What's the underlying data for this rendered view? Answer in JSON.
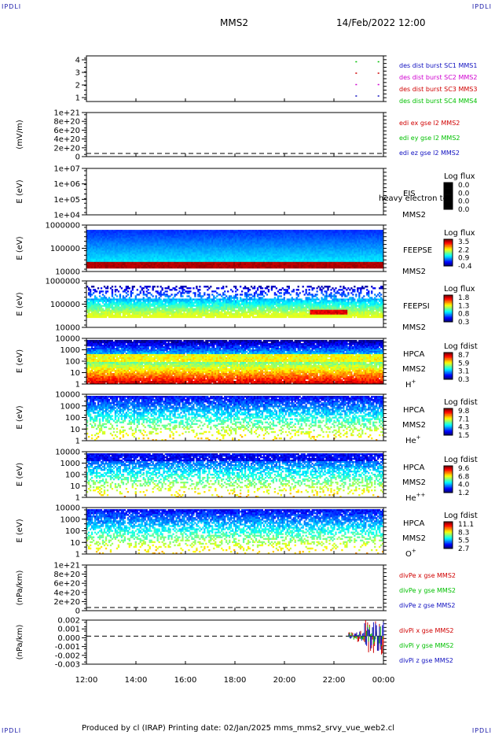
{
  "header": {
    "corner_label": "IPDLI",
    "mission": "MMS2",
    "datetime": "14/Feb/2022 12:00"
  },
  "footer": {
    "text": "Produced by cl (IRAP)   Printing date: 02/Jan/2025   mms_mms2_srvy_vue_web2.cl"
  },
  "x_axis": {
    "ticks": [
      "12:00",
      "14:00",
      "16:00",
      "18:00",
      "20:00",
      "22:00",
      "00:00"
    ]
  },
  "colors": {
    "blue": "#1010c0",
    "magenta": "#d000d0",
    "red": "#d00000",
    "green": "#00c000"
  },
  "chart_data": [
    {
      "type": "scatter",
      "ylabel": "",
      "yticks": [
        "4",
        "3",
        "2",
        "1"
      ],
      "ylim": [
        0.5,
        4.5
      ],
      "series": [
        {
          "name": "des dist burst SC1 MMS1",
          "color": "#1010c0",
          "x": [
            22.9,
            23.8
          ],
          "y": [
            1,
            1
          ]
        },
        {
          "name": "des dist burst SC2 MMS2",
          "color": "#d000d0",
          "x": [
            22.9,
            23.8
          ],
          "y": [
            2,
            2
          ]
        },
        {
          "name": "des dist burst SC3 MMS3",
          "color": "#d00000",
          "x": [
            22.9,
            23.8
          ],
          "y": [
            3,
            3
          ]
        },
        {
          "name": "des dist burst SC4 MMS4",
          "color": "#00c000",
          "x": [
            22.9,
            23.8
          ],
          "y": [
            4,
            4
          ]
        }
      ]
    },
    {
      "type": "line",
      "ylabel": "(mV/m)",
      "yticks": [
        "1e+21",
        "8e+20",
        "6e+20",
        "4e+20",
        "2e+20",
        "0"
      ],
      "series": [
        {
          "name": "edi ex gse l2 MMS2",
          "color": "#d00000"
        },
        {
          "name": "edi ey gse l2 MMS2",
          "color": "#00c000"
        },
        {
          "name": "edi ez gse l2 MMS2",
          "color": "#1010c0"
        }
      ]
    },
    {
      "type": "heatmap",
      "ylabel": "E (eV)",
      "yticks": [
        "1e+07",
        "1e+06",
        "1e+05",
        "1e+04"
      ],
      "instrument": "EIS",
      "mission": "MMS2",
      "overlay": "heavy electron to",
      "colorbar_title": "Log flux",
      "colorbar_ticks": [
        "0.0",
        "0.0",
        "0.0",
        "0.0"
      ]
    },
    {
      "type": "heatmap",
      "ylabel": "E (eV)",
      "yticks": [
        "1000000",
        "100000",
        "10000"
      ],
      "instrument": "FEEPSE",
      "mission": "MMS2",
      "colorbar_title": "Log flux",
      "colorbar_ticks": [
        "3.5",
        "2.2",
        "0.9",
        "-0.4"
      ]
    },
    {
      "type": "heatmap",
      "ylabel": "E (eV)",
      "yticks": [
        "1000000",
        "100000",
        "10000"
      ],
      "instrument": "FEEPSI",
      "mission": "MMS2",
      "colorbar_title": "Log flux",
      "colorbar_ticks": [
        "1.8",
        "1.3",
        "0.8",
        "0.3"
      ]
    },
    {
      "type": "heatmap",
      "ylabel": "E (eV)",
      "yticks": [
        "10000",
        "1000",
        "100",
        "10",
        "1"
      ],
      "instrument": "HPCA",
      "mission": "MMS2",
      "species": "H",
      "charge": "+",
      "colorbar_title": "Log fdist",
      "colorbar_ticks": [
        "8.7",
        "5.9",
        "3.1",
        "0.3"
      ]
    },
    {
      "type": "heatmap",
      "ylabel": "E (eV)",
      "yticks": [
        "10000",
        "1000",
        "100",
        "10",
        "1"
      ],
      "instrument": "HPCA",
      "mission": "MMS2",
      "species": "He",
      "charge": "+",
      "colorbar_title": "Log fdist",
      "colorbar_ticks": [
        "9.8",
        "7.1",
        "4.3",
        "1.5"
      ]
    },
    {
      "type": "heatmap",
      "ylabel": "E (eV)",
      "yticks": [
        "10000",
        "1000",
        "100",
        "10",
        "1"
      ],
      "instrument": "HPCA",
      "mission": "MMS2",
      "species": "He",
      "charge": "++",
      "colorbar_title": "Log fdist",
      "colorbar_ticks": [
        "9.6",
        "6.8",
        "4.0",
        "1.2"
      ]
    },
    {
      "type": "heatmap",
      "ylabel": "E (eV)",
      "yticks": [
        "10000",
        "1000",
        "100",
        "10",
        "1"
      ],
      "instrument": "HPCA",
      "mission": "MMS2",
      "species": "O",
      "charge": "+",
      "colorbar_title": "Log fdist",
      "colorbar_ticks": [
        "11.1",
        "8.3",
        "5.5",
        "2.7"
      ]
    },
    {
      "type": "line",
      "ylabel": "(nPa/km)",
      "yticks": [
        "1e+21",
        "8e+20",
        "6e+20",
        "4e+20",
        "2e+20",
        "0"
      ],
      "series": [
        {
          "name": "divPe x gse MMS2",
          "color": "#d00000"
        },
        {
          "name": "divPe y gse MMS2",
          "color": "#00c000"
        },
        {
          "name": "divPe z gse MMS2",
          "color": "#1010c0"
        }
      ]
    },
    {
      "type": "line",
      "ylabel": "(nPa/km)",
      "yticks": [
        "0.002",
        "0.001",
        "0.000",
        "-0.001",
        "-0.002",
        "-0.003"
      ],
      "ylim": [
        -0.0035,
        0.002
      ],
      "series": [
        {
          "name": "divPi x gse MMS2",
          "color": "#d00000"
        },
        {
          "name": "divPi y gse MMS2",
          "color": "#00c000"
        },
        {
          "name": "divPi z gse MMS2",
          "color": "#1010c0"
        }
      ]
    }
  ]
}
